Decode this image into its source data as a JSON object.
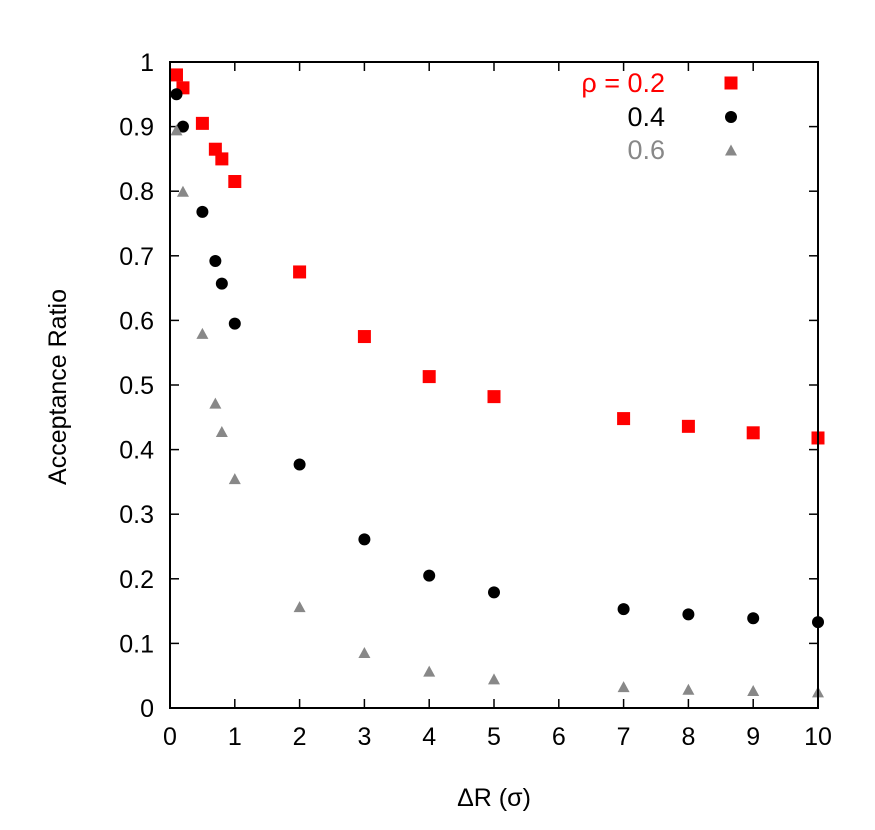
{
  "chart_data": {
    "type": "scatter",
    "xlabel": "ΔR (σ)",
    "ylabel": "Acceptance Ratio",
    "xlim": [
      0,
      10
    ],
    "ylim": [
      0,
      1
    ],
    "x_ticks": [
      "0",
      "1",
      "2",
      "3",
      "4",
      "5",
      "6",
      "7",
      "8",
      "9",
      "10"
    ],
    "y_ticks": [
      "0",
      "0.1",
      "0.2",
      "0.3",
      "0.4",
      "0.5",
      "0.6",
      "0.7",
      "0.8",
      "0.9",
      "1"
    ],
    "x_tick_values": [
      0,
      1,
      2,
      3,
      4,
      5,
      6,
      7,
      8,
      9,
      10
    ],
    "y_tick_values": [
      0,
      0.1,
      0.2,
      0.3,
      0.4,
      0.5,
      0.6,
      0.7,
      0.8,
      0.9,
      1
    ],
    "grid": false,
    "legend_position": "top-right",
    "series": [
      {
        "name": "ρ = 0.2",
        "marker": "square",
        "color": "#ff0000",
        "x": [
          0.1,
          0.2,
          0.5,
          0.7,
          0.8,
          1,
          2,
          3,
          4,
          5,
          7,
          8,
          9,
          10
        ],
        "y": [
          0.98,
          0.96,
          0.905,
          0.865,
          0.85,
          0.815,
          0.675,
          0.575,
          0.513,
          0.482,
          0.448,
          0.436,
          0.426,
          0.418
        ]
      },
      {
        "name": "0.4",
        "marker": "circle",
        "color": "#000000",
        "x": [
          0.1,
          0.2,
          0.5,
          0.7,
          0.8,
          1,
          2,
          3,
          4,
          5,
          7,
          8,
          9,
          10
        ],
        "y": [
          0.95,
          0.9,
          0.768,
          0.692,
          0.657,
          0.595,
          0.377,
          0.261,
          0.205,
          0.179,
          0.153,
          0.145,
          0.139,
          0.133
        ]
      },
      {
        "name": "0.6",
        "marker": "triangle",
        "color": "#888888",
        "x": [
          0.1,
          0.2,
          0.5,
          0.7,
          0.8,
          1,
          2,
          3,
          4,
          5,
          7,
          8,
          9,
          10
        ],
        "y": [
          0.895,
          0.8,
          0.58,
          0.472,
          0.428,
          0.355,
          0.157,
          0.086,
          0.057,
          0.045,
          0.033,
          0.029,
          0.027,
          0.025
        ]
      }
    ]
  }
}
